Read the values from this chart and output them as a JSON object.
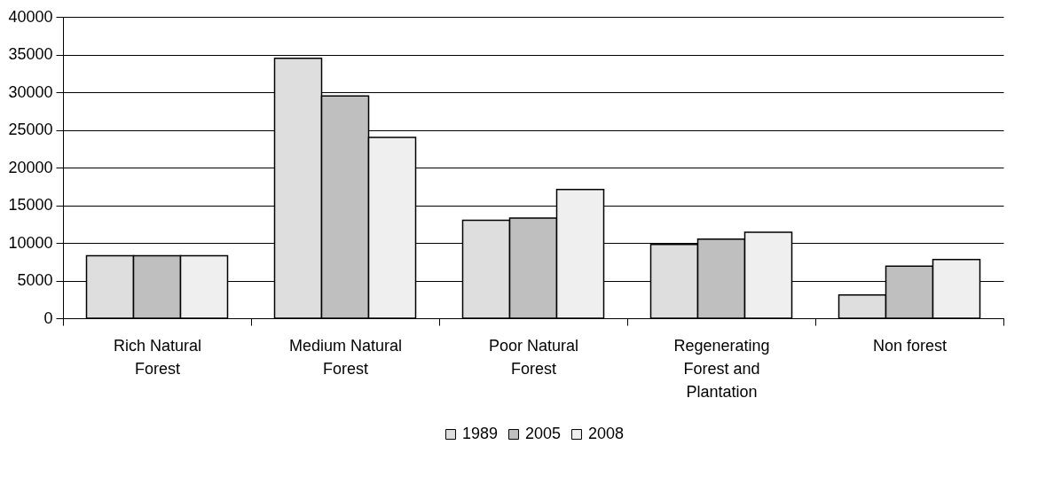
{
  "chart_data": {
    "type": "bar",
    "categories": [
      "Rich Natural Forest",
      "Medium Natural Forest",
      "Poor Natural Forest",
      "Regenerating Forest and Plantation",
      "Non forest"
    ],
    "series": [
      {
        "name": "1989",
        "color": "#dedede",
        "values": [
          8300,
          34500,
          13000,
          9800,
          3100
        ]
      },
      {
        "name": "2005",
        "color": "#bfbfbf",
        "values": [
          8300,
          29500,
          13300,
          10500,
          6900
        ]
      },
      {
        "name": "2008",
        "color": "#efefef",
        "values": [
          8300,
          24000,
          17100,
          11400,
          7800
        ]
      }
    ],
    "ylim": [
      0,
      40000
    ],
    "yticks": [
      0,
      5000,
      10000,
      15000,
      20000,
      25000,
      30000,
      35000,
      40000
    ],
    "grid": "y",
    "legend": "bottom"
  }
}
